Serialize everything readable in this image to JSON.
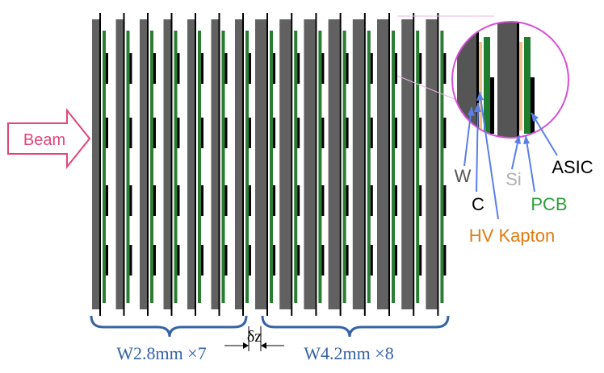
{
  "beam": {
    "label": "Beam",
    "color": "#e0457b"
  },
  "zoom": {
    "labels": {
      "w": "W",
      "c": "C",
      "si": "Si",
      "asic": "ASIC",
      "pcb": "PCB",
      "hv_kapton": "HV Kapton"
    },
    "colors": {
      "w": "#555555",
      "c": "#000000",
      "si": "#b0b0b0",
      "asic": "#000000",
      "pcb": "#2e9e3e",
      "hv_kapton": "#e07b12",
      "arrow": "#5a7fe8",
      "circle": "#d64fd6"
    }
  },
  "stack": {
    "sections": [
      {
        "label": "W2.8mm ×7",
        "layers": 7
      },
      {
        "label": "W4.2mm ×8",
        "layers": 8
      }
    ],
    "gap_label": "δz",
    "colors": {
      "tungsten": "#616161",
      "pcb": "#2a7d33",
      "asic": "#000000",
      "brace": "#3563a6"
    }
  }
}
